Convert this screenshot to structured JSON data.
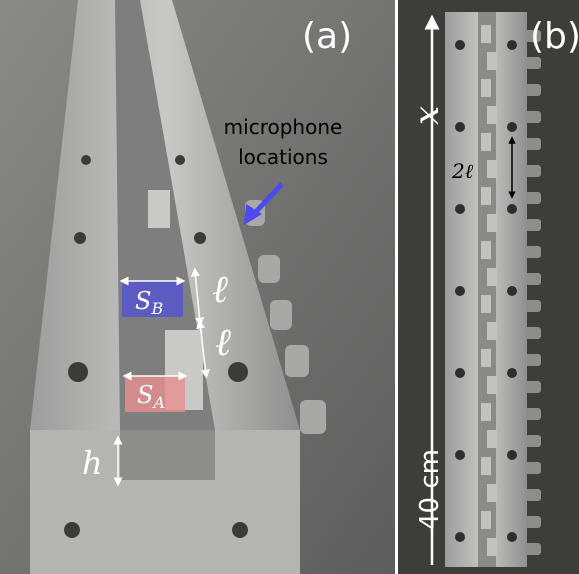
{
  "panels": [
    {
      "label": "(a)",
      "microphone_label": [
        "microphone",
        "locations"
      ],
      "sb": {
        "symbol": "S",
        "sub": "B"
      },
      "sa": {
        "symbol": "S",
        "sub": "A"
      },
      "ell_upper": "ℓ",
      "ell_lower": "ℓ",
      "height": "h"
    },
    {
      "label": "(b)",
      "axis": "x",
      "spacing": "2ℓ",
      "length": "40 cm"
    }
  ]
}
